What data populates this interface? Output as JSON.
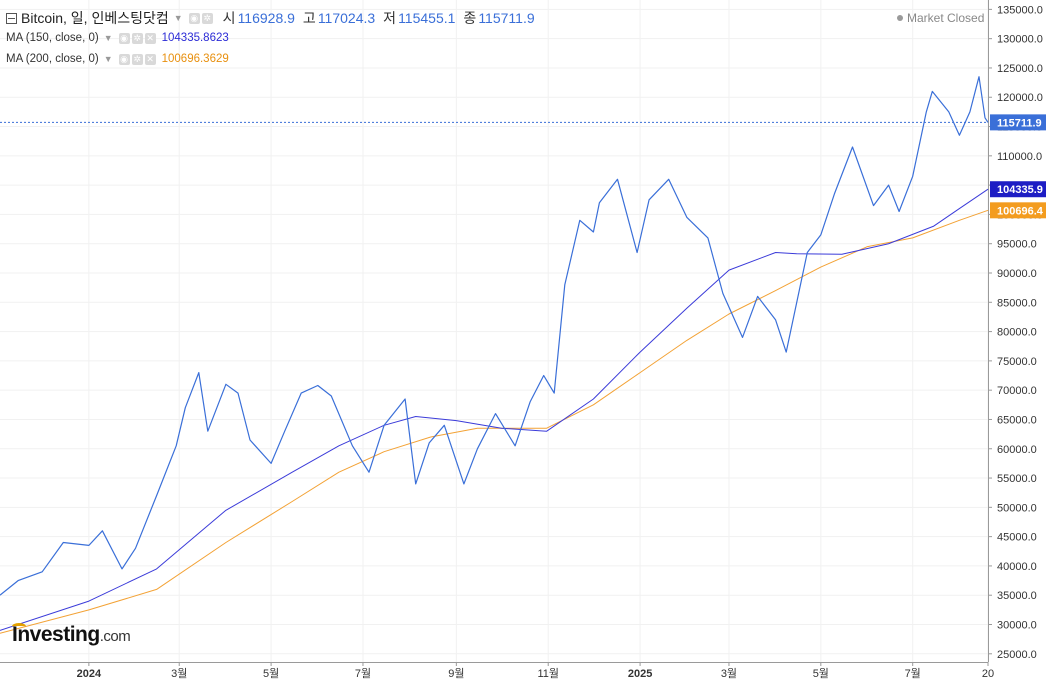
{
  "header": {
    "title": "Bitcoin, 일, 인베스팅닷컴",
    "open_label": "시",
    "open_value": "116928.9",
    "high_label": "고",
    "high_value": "117024.3",
    "low_label": "저",
    "low_value": "115455.1",
    "close_label": "종",
    "close_value": "115711.9",
    "status": "Market Closed"
  },
  "indicators": [
    {
      "label": "MA (150, close, 0)",
      "value": "104335.8623",
      "color": "#2b2bd6"
    },
    {
      "label": "MA (200, close, 0)",
      "value": "100696.3629",
      "color": "#f0a53a"
    }
  ],
  "price_tags": {
    "last": "115711.9",
    "ma150": "104335.9",
    "ma200": "100696.4"
  },
  "logo": {
    "name": "Investing",
    "suffix": ".com"
  },
  "colors": {
    "price": "#3a6fd8",
    "ma150": "#3b3bd9",
    "ma200": "#f3a235",
    "last_tag": "#3a6fd8",
    "ma150_tag": "#1d1dc4",
    "ma200_tag": "#f39c1f"
  },
  "chart_data": {
    "type": "line",
    "y_axis": {
      "ticks": [
        25000,
        30000,
        35000,
        40000,
        45000,
        50000,
        55000,
        60000,
        65000,
        70000,
        75000,
        80000,
        85000,
        90000,
        95000,
        100000,
        105000,
        110000,
        115000,
        120000,
        125000,
        130000,
        135000
      ],
      "tick_labels": [
        "25000.0",
        "30000.0",
        "35000.0",
        "40000.0",
        "45000.0",
        "50000.0",
        "55000.0",
        "60000.0",
        "65000.0",
        "70000.0",
        "75000.0",
        "80000.0",
        "85000.0",
        "90000.0",
        "95000.0",
        "100000.0",
        "105000.0",
        "110000.0",
        "115000.0",
        "120000.0",
        "125000.0",
        "130000.0",
        "135000.0"
      ],
      "ylim": [
        23600,
        136600
      ]
    },
    "x_axis": {
      "labels": [
        "2024",
        "3월",
        "5월",
        "7월",
        "9월",
        "11월",
        "2025",
        "3월",
        "5월",
        "7월",
        "20"
      ],
      "label_dates": [
        "2024-01-01",
        "2024-03-01",
        "2024-05-01",
        "2024-07-01",
        "2024-09-01",
        "2024-11-01",
        "2025-01-01",
        "2025-03-01",
        "2025-05-01",
        "2025-07-01",
        "2025-08-20"
      ],
      "xlim": [
        "2023-11-03",
        "2025-08-20"
      ]
    },
    "series": [
      {
        "key": "price",
        "x": [
          "2023-11-03",
          "2023-11-15",
          "2023-12-01",
          "2023-12-15",
          "2024-01-01",
          "2024-01-10",
          "2024-01-23",
          "2024-02-01",
          "2024-02-15",
          "2024-02-28",
          "2024-03-05",
          "2024-03-14",
          "2024-03-20",
          "2024-04-01",
          "2024-04-09",
          "2024-04-17",
          "2024-05-01",
          "2024-05-10",
          "2024-05-21",
          "2024-06-01",
          "2024-06-10",
          "2024-06-24",
          "2024-07-05",
          "2024-07-15",
          "2024-07-29",
          "2024-08-05",
          "2024-08-14",
          "2024-08-24",
          "2024-09-06",
          "2024-09-15",
          "2024-09-27",
          "2024-10-10",
          "2024-10-20",
          "2024-10-29",
          "2024-11-05",
          "2024-11-12",
          "2024-11-22",
          "2024-12-01",
          "2024-12-05",
          "2024-12-17",
          "2024-12-30",
          "2025-01-07",
          "2025-01-20",
          "2025-02-01",
          "2025-02-15",
          "2025-02-25",
          "2025-03-10",
          "2025-03-20",
          "2025-04-01",
          "2025-04-08",
          "2025-04-22",
          "2025-05-01",
          "2025-05-10",
          "2025-05-22",
          "2025-06-05",
          "2025-06-15",
          "2025-06-22",
          "2025-07-01",
          "2025-07-10",
          "2025-07-14",
          "2025-07-25",
          "2025-08-01",
          "2025-08-08",
          "2025-08-14",
          "2025-08-18",
          "2025-08-20"
        ],
        "values": [
          35000,
          37500,
          39000,
          44000,
          43500,
          46000,
          39500,
          43000,
          52000,
          60500,
          67000,
          73000,
          63000,
          71000,
          69500,
          61500,
          57500,
          63000,
          69500,
          70800,
          69000,
          60500,
          56000,
          64000,
          68500,
          54000,
          61000,
          64000,
          54000,
          60000,
          66000,
          60500,
          68000,
          72500,
          69500,
          88000,
          99000,
          97000,
          102000,
          106000,
          93500,
          102500,
          106000,
          99500,
          96000,
          86500,
          79000,
          86000,
          82000,
          76500,
          93500,
          96500,
          103500,
          111500,
          101500,
          105000,
          100500,
          106500,
          117500,
          121000,
          117500,
          113500,
          117500,
          123500,
          116500,
          115700
        ]
      },
      {
        "key": "ma150",
        "x": [
          "2023-11-03",
          "2024-01-01",
          "2024-02-15",
          "2024-04-01",
          "2024-05-15",
          "2024-06-15",
          "2024-07-15",
          "2024-08-05",
          "2024-09-01",
          "2024-10-01",
          "2024-10-31",
          "2024-12-01",
          "2025-01-01",
          "2025-02-01",
          "2025-03-01",
          "2025-04-01",
          "2025-04-15",
          "2025-05-15",
          "2025-06-15",
          "2025-07-15",
          "2025-08-01",
          "2025-08-20"
        ],
        "values": [
          29000,
          34000,
          39500,
          49500,
          56000,
          60500,
          64000,
          65500,
          64800,
          63500,
          63000,
          68500,
          76500,
          84000,
          90500,
          93500,
          93300,
          93200,
          95000,
          98000,
          101000,
          104300
        ]
      },
      {
        "key": "ma200",
        "x": [
          "2023-11-03",
          "2024-01-01",
          "2024-02-15",
          "2024-04-01",
          "2024-05-15",
          "2024-06-15",
          "2024-07-15",
          "2024-08-15",
          "2024-09-15",
          "2024-10-31",
          "2024-12-01",
          "2025-01-01",
          "2025-02-01",
          "2025-03-01",
          "2025-04-01",
          "2025-05-01",
          "2025-06-01",
          "2025-07-01",
          "2025-08-01",
          "2025-08-20"
        ],
        "values": [
          28500,
          32500,
          36000,
          44000,
          51000,
          56000,
          59500,
          62000,
          63500,
          63500,
          67500,
          73000,
          78500,
          83000,
          87000,
          91000,
          94500,
          96000,
          99000,
          100700
        ]
      }
    ],
    "last_price_line": 115711.9
  }
}
